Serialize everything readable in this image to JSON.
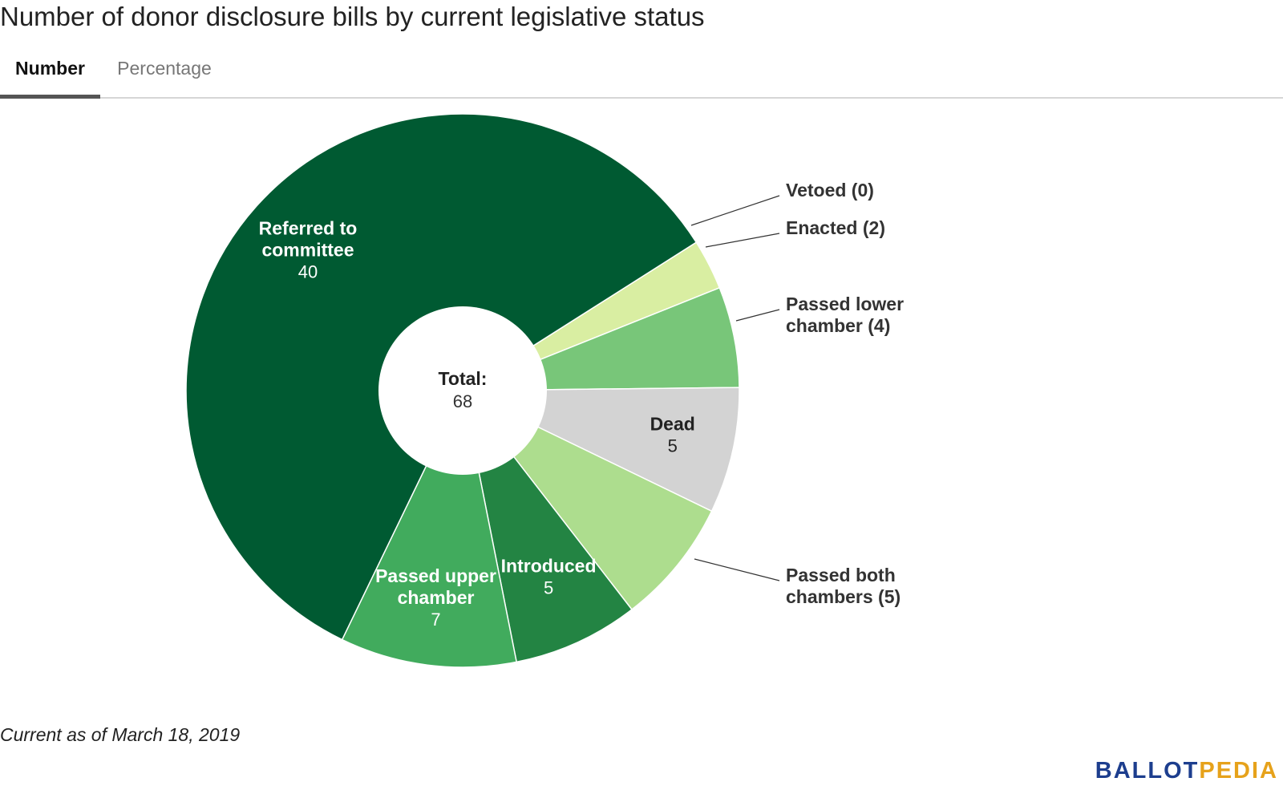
{
  "title": "Number of donor disclosure bills by current legislative status",
  "tabs": [
    {
      "label": "Number",
      "active": true
    },
    {
      "label": "Percentage",
      "active": false
    }
  ],
  "footnote": "Current as of March 18, 2019",
  "logo": {
    "part1": "BALLOT",
    "part2": "PEDIA"
  },
  "chart_data": {
    "type": "pie",
    "donut": true,
    "center_label": {
      "title": "Total:",
      "value": "68"
    },
    "slices": [
      {
        "label": "Vetoed",
        "value": 0,
        "color": "#d4ebb0",
        "outside_label": "Vetoed (0)"
      },
      {
        "label": "Enacted",
        "value": 2,
        "color": "#d9eea2",
        "outside_label": "Enacted (2)"
      },
      {
        "label": "Passed lower chamber",
        "value": 4,
        "color": "#78c679",
        "outside_label": "Passed lower\nchamber (4)"
      },
      {
        "label": "Dead",
        "value": 5,
        "color": "#d3d3d3",
        "inside_label": "Dead",
        "label_color": "#222222"
      },
      {
        "label": "Passed both chambers",
        "value": 5,
        "color": "#addd8e",
        "outside_label": "Passed both\nchambers (5)"
      },
      {
        "label": "Introduced",
        "value": 5,
        "color": "#238443",
        "inside_label": "Introduced",
        "label_color": "#ffffff"
      },
      {
        "label": "Passed upper chamber",
        "value": 7,
        "color": "#41ab5d",
        "inside_label": "Passed upper\nchamber",
        "label_color": "#ffffff"
      },
      {
        "label": "Referred to committee",
        "value": 40,
        "color": "#005a32",
        "inside_label": "Referred to\ncommittee",
        "label_color": "#ffffff"
      }
    ]
  }
}
